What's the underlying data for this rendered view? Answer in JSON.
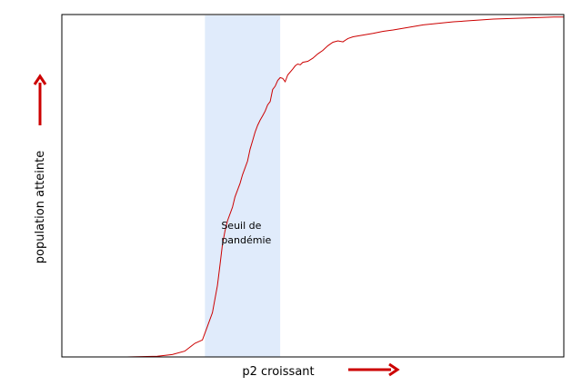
{
  "chart_data": {
    "type": "line",
    "title": "",
    "xlabel": "p2 croissant",
    "ylabel": "population atteinte",
    "xlim": [
      0,
      1
    ],
    "ylim": [
      0,
      1
    ],
    "grid": false,
    "x_ticks_shown": false,
    "y_ticks_shown": false,
    "shaded_band": {
      "x_start": 0.285,
      "x_end": 0.435,
      "color": "#e0ebfb"
    },
    "annotation": {
      "line1": "Seuil de",
      "line2": "pandémie"
    },
    "series": [
      {
        "color": "#cc0000",
        "x": [
          0.13,
          0.19,
          0.22,
          0.245,
          0.265,
          0.28,
          0.29,
          0.3,
          0.31,
          0.315,
          0.32,
          0.325,
          0.33,
          0.34,
          0.345,
          0.35,
          0.355,
          0.36,
          0.37,
          0.375,
          0.38,
          0.385,
          0.39,
          0.395,
          0.4,
          0.405,
          0.41,
          0.415,
          0.42,
          0.425,
          0.43,
          0.435,
          0.44,
          0.445,
          0.45,
          0.46,
          0.465,
          0.47,
          0.475,
          0.48,
          0.49,
          0.5,
          0.51,
          0.52,
          0.53,
          0.54,
          0.55,
          0.56,
          0.57,
          0.58,
          0.6,
          0.62,
          0.64,
          0.66,
          0.68,
          0.7,
          0.72,
          0.74,
          0.76,
          0.78,
          0.8,
          0.82,
          0.84,
          0.86,
          0.88,
          0.9,
          0.92,
          0.94,
          0.96,
          0.98,
          1.0
        ],
        "y": [
          0.0,
          0.002,
          0.007,
          0.017,
          0.04,
          0.05,
          0.09,
          0.13,
          0.21,
          0.27,
          0.33,
          0.37,
          0.4,
          0.44,
          0.47,
          0.49,
          0.51,
          0.535,
          0.575,
          0.61,
          0.635,
          0.66,
          0.68,
          0.695,
          0.708,
          0.722,
          0.74,
          0.75,
          0.785,
          0.795,
          0.812,
          0.82,
          0.818,
          0.808,
          0.828,
          0.845,
          0.855,
          0.86,
          0.858,
          0.865,
          0.868,
          0.877,
          0.89,
          0.9,
          0.914,
          0.924,
          0.928,
          0.925,
          0.935,
          0.94,
          0.945,
          0.95,
          0.956,
          0.96,
          0.965,
          0.97,
          0.975,
          0.978,
          0.981,
          0.984,
          0.986,
          0.988,
          0.99,
          0.992,
          0.993,
          0.994,
          0.995,
          0.996,
          0.997,
          0.998,
          0.998
        ]
      }
    ]
  },
  "colors": {
    "arrow": "#cc0000",
    "frame": "#000000"
  }
}
